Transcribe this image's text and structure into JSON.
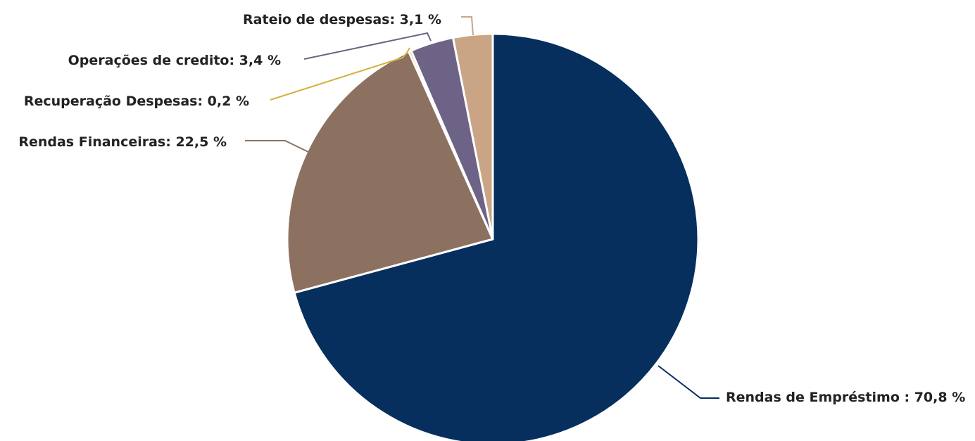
{
  "chart_data": {
    "type": "pie",
    "title": "",
    "slices": [
      {
        "label": "Rendas de Empréstimo : 70,8 %",
        "category": "Rendas de Empréstimo",
        "value": 70.8,
        "color": "#062f5e"
      },
      {
        "label": "Rendas Financeiras: 22,5 %",
        "category": "Rendas Financeiras",
        "value": 22.5,
        "color": "#8c7161"
      },
      {
        "label": "Recuperação Despesas: 0,2 %",
        "category": "Recuperação Despesas",
        "value": 0.2,
        "color": "#d4b03d"
      },
      {
        "label": "Operações de credito: 3,4 %",
        "category": "Operações de credito",
        "value": 3.4,
        "color": "#6c6386"
      },
      {
        "label": "Rateio de despesas: 3,1 %",
        "category": "Rateio de despesas",
        "value": 3.1,
        "color": "#c9a586"
      }
    ],
    "start_angle": "12 o'clock",
    "direction": "clockwise",
    "legend": "none",
    "data_labels": "outside with leader lines"
  }
}
